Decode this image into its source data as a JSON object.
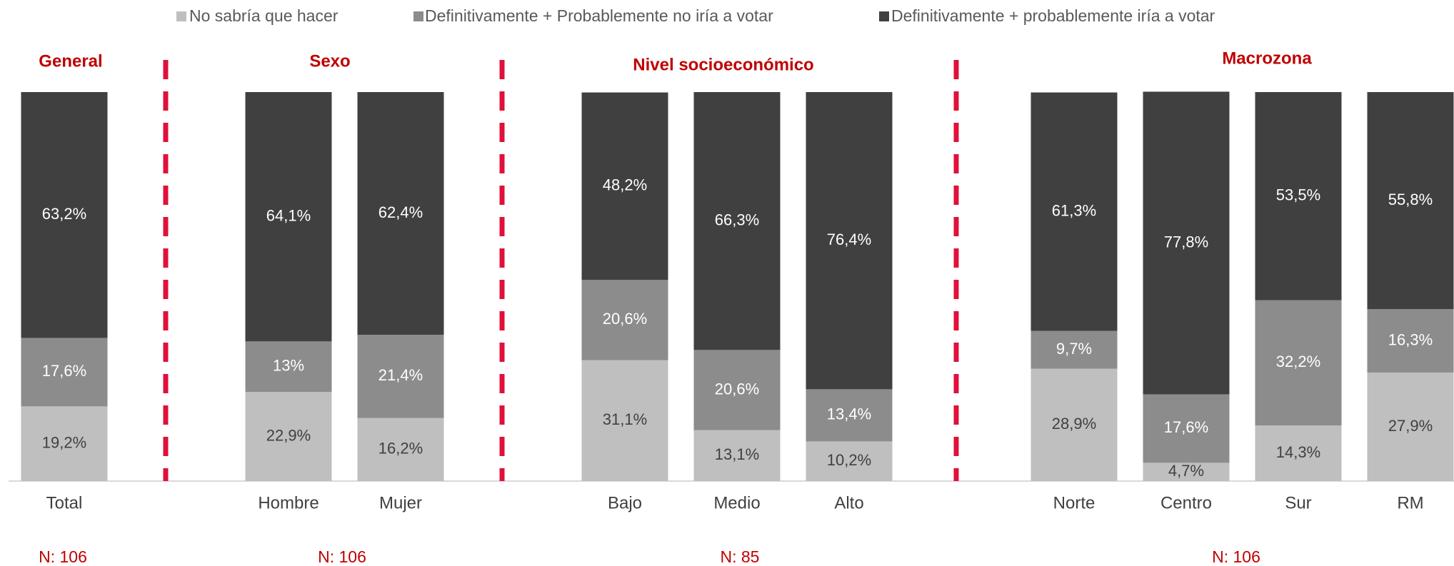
{
  "chart_data": {
    "type": "stacked-bar",
    "groups": [
      {
        "title": "General",
        "n": "N: 106",
        "categories": [
          "Total"
        ]
      },
      {
        "title": "Sexo",
        "n": "N: 106",
        "categories": [
          "Hombre",
          "Mujer"
        ]
      },
      {
        "title": "Nivel socioeconómico",
        "n": "N: 85",
        "categories": [
          "Bajo",
          "Medio",
          "Alto"
        ]
      },
      {
        "title": "Macrozona",
        "n": "N: 106",
        "categories": [
          "Norte",
          "Centro",
          "Sur",
          "RM"
        ]
      }
    ],
    "ylim": [
      0,
      100
    ],
    "series": [
      {
        "name": "No sabría que hacer",
        "color": "#bfbfbf",
        "label_color": "#404040",
        "values": [
          19.2,
          22.9,
          16.2,
          31.1,
          13.1,
          10.2,
          28.9,
          4.7,
          14.3,
          27.9
        ],
        "value_labels": [
          "19,2%",
          "22,9%",
          "16,2%",
          "31,1%",
          "13,1%",
          "10,2%",
          "28,9%",
          "4,7%",
          "14,3%",
          "27,9%"
        ]
      },
      {
        "name": "Definitivamente + Probablemente no iría a votar",
        "color": "#8c8c8c",
        "label_color": "#ffffff",
        "values": [
          17.6,
          13,
          21.4,
          20.6,
          20.6,
          13.4,
          9.7,
          17.6,
          32.2,
          16.3
        ],
        "value_labels": [
          "17,6%",
          "13%",
          "21,4%",
          "20,6%",
          "20,6%",
          "13,4%",
          "9,7%",
          "17,6%",
          "32,2%",
          "16,3%"
        ]
      },
      {
        "name": "Definitivamente + probablemente iría a votar",
        "color": "#404040",
        "label_color": "#ffffff",
        "values": [
          63.2,
          64.1,
          62.4,
          48.2,
          66.3,
          76.4,
          61.3,
          77.8,
          53.5,
          55.8
        ],
        "value_labels": [
          "63,2%",
          "64,1%",
          "62,4%",
          "48,2%",
          "66,3%",
          "76,4%",
          "61,3%",
          "77,8%",
          "53,5%",
          "55,8%"
        ]
      }
    ]
  }
}
